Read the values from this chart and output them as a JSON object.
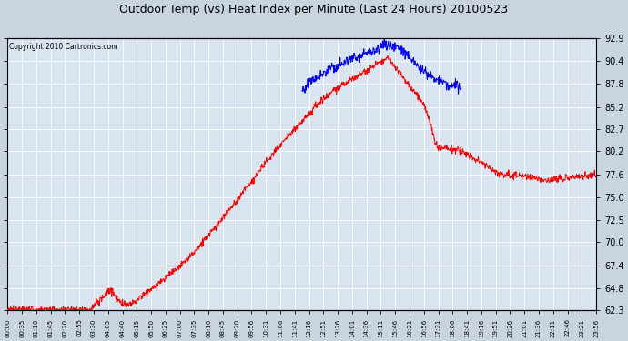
{
  "title": "Outdoor Temp (vs) Heat Index per Minute (Last 24 Hours) 20100523",
  "copyright": "Copyright 2010 Cartronics.com",
  "yticks": [
    62.3,
    64.8,
    67.4,
    70.0,
    72.5,
    75.0,
    77.6,
    80.2,
    82.7,
    85.2,
    87.8,
    90.4,
    92.9
  ],
  "ymin": 62.3,
  "ymax": 92.9,
  "background_color": "#c8d4e0",
  "plot_bg_color": "#d8e4f0",
  "grid_color": "#ffffff",
  "title_color": "#000000",
  "red_line_color": "#ff0000",
  "blue_line_color": "#0000ff",
  "xtick_labels": [
    "00:00",
    "00:35",
    "01:10",
    "01:45",
    "02:20",
    "02:55",
    "03:30",
    "04:05",
    "04:40",
    "05:15",
    "05:50",
    "06:25",
    "07:00",
    "07:35",
    "08:10",
    "08:45",
    "09:20",
    "09:56",
    "10:31",
    "11:06",
    "11:41",
    "12:16",
    "12:51",
    "13:26",
    "14:01",
    "14:36",
    "15:11",
    "15:46",
    "16:21",
    "16:56",
    "17:31",
    "18:06",
    "18:41",
    "19:16",
    "19:51",
    "20:26",
    "21:01",
    "21:36",
    "22:11",
    "22:46",
    "23:21",
    "23:56"
  ],
  "num_points": 1440,
  "figsize": [
    6.9,
    3.75
  ],
  "dpi": 100
}
